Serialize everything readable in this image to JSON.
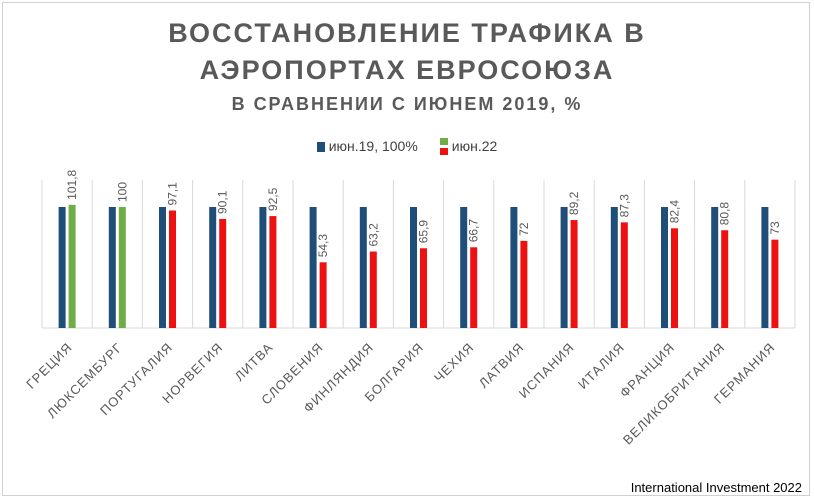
{
  "chart_data": {
    "type": "bar",
    "title_line1": "ВОССТАНОВЛЕНИЕ ТРАФИКА В",
    "title_line2": "АЭРОПОРТАХ ЕВРОСОЮЗА",
    "subtitle": "В СРАВНЕНИИ С ИЮНЕМ 2019, %",
    "categories": [
      "ГРЕЦИЯ",
      "ЛЮКСЕМБУРГ",
      "ПОРТУГАЛИЯ",
      "НОРВЕГИЯ",
      "ЛИТВА",
      "СЛОВЕНИЯ",
      "ФИНЛЯНДИЯ",
      "БОЛГАРИЯ",
      "ЧЕХИЯ",
      "ЛАТВИЯ",
      "ИСПАНИЯ",
      "ИТАЛИЯ",
      "ФРАНЦИЯ",
      "ВЕЛИКОБРИТАНИЯ",
      "ГЕРМАНИЯ"
    ],
    "series": [
      {
        "name": "июн.19, 100%",
        "values": [
          100,
          100,
          100,
          100,
          100,
          100,
          100,
          100,
          100,
          100,
          100,
          100,
          100,
          100,
          100
        ]
      },
      {
        "name": "июн.22",
        "values": [
          101.8,
          100,
          97.1,
          90.1,
          92.5,
          54.3,
          63.2,
          65.9,
          66.7,
          72,
          89.2,
          87.3,
          82.4,
          80.8,
          73
        ]
      }
    ],
    "data_labels": [
      "101,8",
      "100",
      "97,1",
      "90,1",
      "92,5",
      "54,3",
      "63,2",
      "65,9",
      "66,7",
      "72",
      "89,2",
      "87,3",
      "82,4",
      "80,8",
      "73"
    ],
    "highlight_categories": [
      "ГРЕЦИЯ",
      "ЛЮКСЕМБУРГ"
    ],
    "ylim": [
      0,
      150
    ],
    "legend_position": "top-center"
  },
  "colors": {
    "baseline": "#1f4e79",
    "current": "#ee1111",
    "highlight": "#70ad47",
    "gridline": "#d9d9d9",
    "axis_label": "#595959"
  },
  "credit": "International Investment 2022"
}
